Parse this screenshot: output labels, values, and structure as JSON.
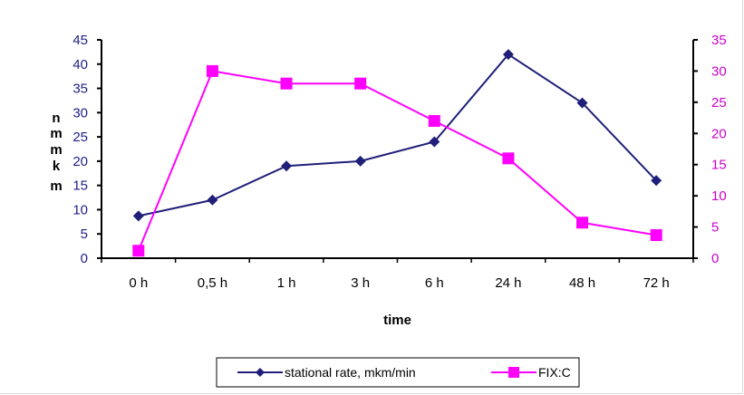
{
  "chart_data": {
    "type": "line",
    "categories": [
      "0 h",
      "0,5 h",
      "1 h",
      "3 h",
      "6 h",
      "24 h",
      "48 h",
      "72 h"
    ],
    "xlabel": "time",
    "ylabel_chars": [
      "n",
      "m",
      "m",
      "k",
      "m"
    ],
    "yleft": {
      "lim": [
        0,
        45
      ],
      "ticks": [
        0,
        5,
        10,
        15,
        20,
        25,
        30,
        35,
        40,
        45
      ]
    },
    "yright": {
      "lim": [
        0,
        35
      ],
      "ticks": [
        0,
        5,
        10,
        15,
        20,
        25,
        30,
        35
      ]
    },
    "grid": false,
    "legend_position": "bottom",
    "series": [
      {
        "name": "stational rate, mkm/min",
        "axis": "left",
        "color": "#1f1f7a",
        "marker": "diamond",
        "values": [
          8.7,
          12,
          19,
          20,
          24,
          42,
          32,
          16
        ]
      },
      {
        "name": "FIX:C",
        "axis": "right",
        "color": "#ff00ff",
        "marker": "square",
        "values": [
          1.2,
          30,
          28,
          28,
          22,
          16,
          5.7,
          3.7
        ]
      }
    ]
  }
}
